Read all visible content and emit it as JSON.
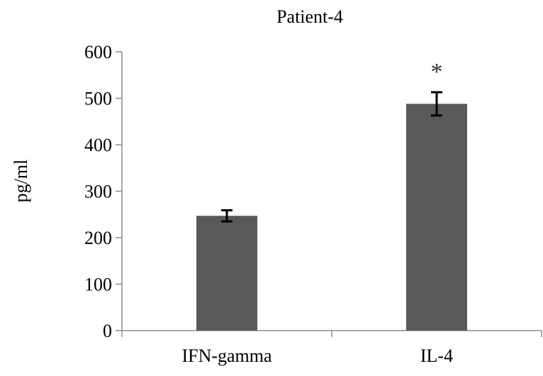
{
  "chart_data": {
    "type": "bar",
    "title": "Patient-4",
    "xlabel": "",
    "ylabel": "pg/ml",
    "ylim": [
      0,
      600
    ],
    "yticks": [
      0,
      100,
      200,
      300,
      400,
      500,
      600
    ],
    "categories": [
      "IFN-gamma",
      "IL-4"
    ],
    "values": [
      247,
      488
    ],
    "errors": [
      12,
      25
    ],
    "annotations": [
      "",
      "*"
    ],
    "grid": false,
    "bar_color": "#595959",
    "axis_color": "#8c8c8c"
  }
}
